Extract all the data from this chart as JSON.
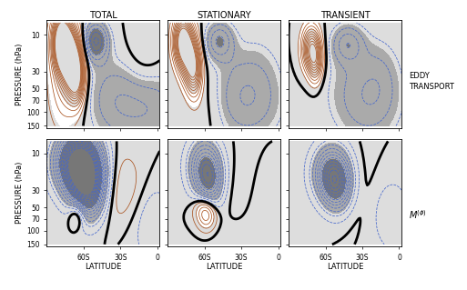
{
  "title_top": [
    "TOTAL",
    "STATIONARY",
    "TRANSIENT"
  ],
  "ylabel": "PRESSURE (hPa)",
  "xlabel": "LATITUDE",
  "right_label_top": "EDDY\nTRANSPORT",
  "right_label_bottom": "M⁽ϕ⁾",
  "figsize": [
    5.13,
    3.19
  ],
  "dpi": 100,
  "col_neg": "#4466cc",
  "col_pos": "#aa5522",
  "col_zero": "#000000",
  "shade_colors": [
    "#888888",
    "#aaaaaa",
    "#cccccc",
    "#ffffff",
    "#cccccc",
    "#aaaaaa",
    "#888888"
  ]
}
